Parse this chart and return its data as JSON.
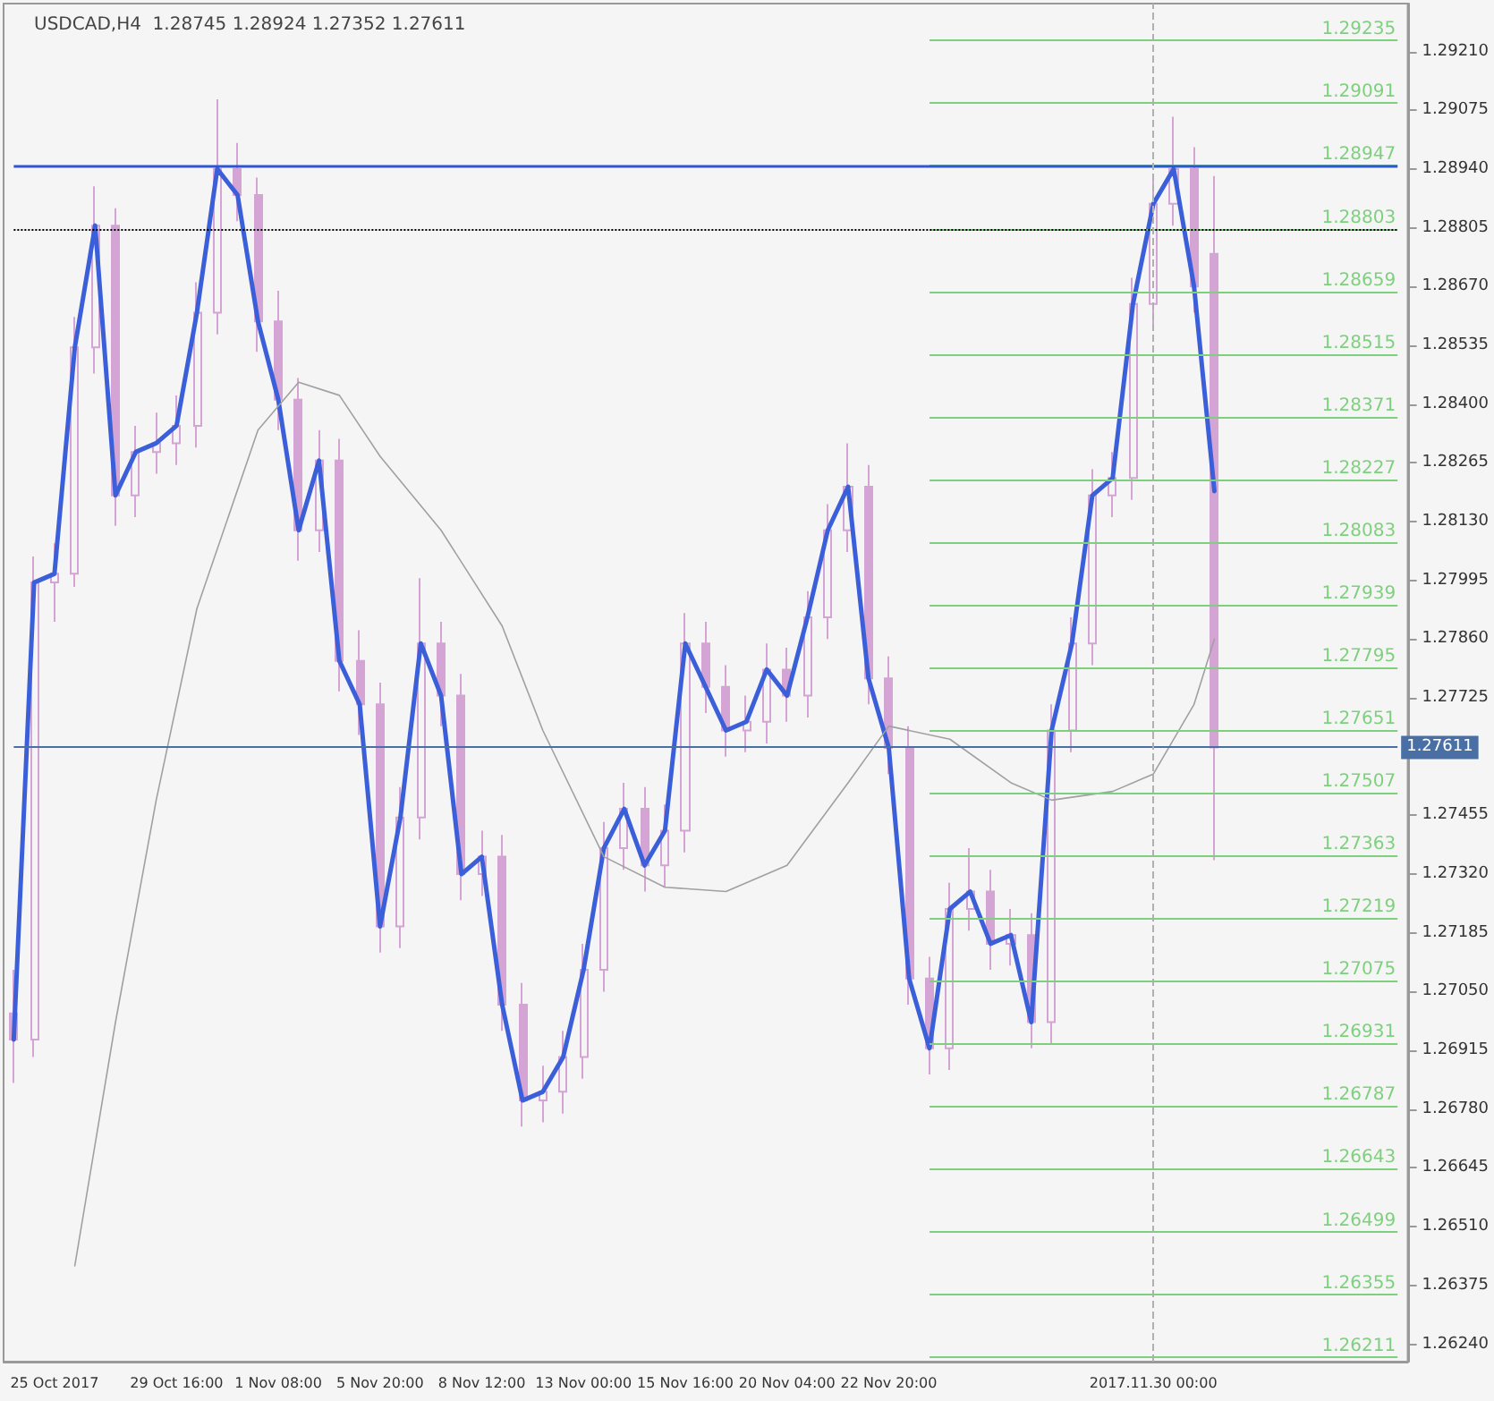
{
  "chart_data": {
    "type": "candlestick",
    "title": "USDCAD,H4  1.28745 1.28924 1.27352 1.27611",
    "color": "#d4a4d4",
    "marker": "none",
    "categories": [
      null,
      null,
      "25 Oct 2017",
      null,
      null,
      null,
      null,
      null,
      "29 Oct 16:00",
      null,
      null,
      null,
      null,
      "1 Nov 08:00",
      null,
      null,
      null,
      null,
      "5 Nov 20:00",
      null,
      null,
      null,
      null,
      "8 Nov 12:00",
      null,
      null,
      null,
      null,
      "13 Nov 00:00",
      null,
      null,
      null,
      null,
      "15 Nov 16:00",
      null,
      null,
      null,
      null,
      "20 Nov 04:00",
      null,
      null,
      null,
      null,
      "22 Nov 20:00",
      null,
      null,
      null,
      null,
      null,
      null,
      null,
      null,
      null,
      null,
      null,
      null,
      "2017.11.30 00:00",
      null,
      null,
      null,
      null,
      null,
      null,
      null,
      null,
      null,
      null,
      null,
      null
    ],
    "ohlc": [
      [
        1.27,
        1.271,
        1.2684,
        1.2694
      ],
      [
        1.2694,
        1.2805,
        1.269,
        1.2799
      ],
      [
        1.2799,
        1.2808,
        1.279,
        1.2801
      ],
      [
        1.2801,
        1.286,
        1.2798,
        1.2853
      ],
      [
        1.2853,
        1.289,
        1.2847,
        1.2881
      ],
      [
        1.2881,
        1.2885,
        1.2812,
        1.2819
      ],
      [
        1.2819,
        1.2835,
        1.2814,
        1.2829
      ],
      [
        1.2829,
        1.2838,
        1.2824,
        1.2831
      ],
      [
        1.2831,
        1.2842,
        1.2826,
        1.2835
      ],
      [
        1.2835,
        1.2868,
        1.283,
        1.2861
      ],
      [
        1.2861,
        1.291,
        1.2856,
        1.2894
      ],
      [
        1.2894,
        1.29,
        1.2882,
        1.2888
      ],
      [
        1.2888,
        1.2892,
        1.2852,
        1.2859
      ],
      [
        1.2859,
        1.2866,
        1.2834,
        1.2841
      ],
      [
        1.2841,
        1.2846,
        1.2804,
        1.2811
      ],
      [
        1.2811,
        1.2834,
        1.2806,
        1.2827
      ],
      [
        1.2827,
        1.2832,
        1.2774,
        1.2781
      ],
      [
        1.2781,
        1.2788,
        1.2764,
        1.2771
      ],
      [
        1.2771,
        1.2776,
        1.2714,
        1.272
      ],
      [
        1.272,
        1.2752,
        1.2715,
        1.2745
      ],
      [
        1.2745,
        1.28,
        1.274,
        1.2785
      ],
      [
        1.2785,
        1.279,
        1.2766,
        1.2773
      ],
      [
        1.2773,
        1.2778,
        1.2726,
        1.2732
      ],
      [
        1.2732,
        1.2742,
        1.2727,
        1.2736
      ],
      [
        1.2736,
        1.2741,
        1.2696,
        1.2702
      ],
      [
        1.2702,
        1.2707,
        1.2674,
        1.268
      ],
      [
        1.268,
        1.2688,
        1.2675,
        1.2682
      ],
      [
        1.2682,
        1.2696,
        1.2677,
        1.269
      ],
      [
        1.269,
        1.2716,
        1.2685,
        1.271
      ],
      [
        1.271,
        1.2744,
        1.2705,
        1.2738
      ],
      [
        1.2738,
        1.2753,
        1.2733,
        1.2747
      ],
      [
        1.2747,
        1.2752,
        1.2728,
        1.2734
      ],
      [
        1.2734,
        1.2748,
        1.2729,
        1.2742
      ],
      [
        1.2742,
        1.2792,
        1.2737,
        1.2785
      ],
      [
        1.2785,
        1.279,
        1.2769,
        1.2775
      ],
      [
        1.2775,
        1.278,
        1.2759,
        1.2765
      ],
      [
        1.2765,
        1.2773,
        1.276,
        1.2767
      ],
      [
        1.2767,
        1.2785,
        1.2762,
        1.2779
      ],
      [
        1.2779,
        1.2784,
        1.2767,
        1.2773
      ],
      [
        1.2773,
        1.2797,
        1.2768,
        1.2791
      ],
      [
        1.2791,
        1.2817,
        1.2786,
        1.2811
      ],
      [
        1.2811,
        1.2831,
        1.2806,
        1.2821
      ],
      [
        1.2821,
        1.2826,
        1.2771,
        1.2777
      ],
      [
        1.2777,
        1.2782,
        1.2755,
        1.2761
      ],
      [
        1.2761,
        1.2766,
        1.2702,
        1.2708
      ],
      [
        1.2708,
        1.2713,
        1.2686,
        1.2692
      ],
      [
        1.2692,
        1.273,
        1.2687,
        1.2724
      ],
      [
        1.2724,
        1.2738,
        1.2719,
        1.2728
      ],
      [
        1.2728,
        1.2733,
        1.271,
        1.2716
      ],
      [
        1.2716,
        1.2724,
        1.2711,
        1.2718
      ],
      [
        1.2718,
        1.2723,
        1.2692,
        1.2698
      ],
      [
        1.2698,
        1.2771,
        1.2693,
        1.2765
      ],
      [
        1.2765,
        1.2791,
        1.276,
        1.2785
      ],
      [
        1.2785,
        1.2825,
        1.278,
        1.2819
      ],
      [
        1.2819,
        1.2829,
        1.2814,
        1.2823
      ],
      [
        1.2823,
        1.2869,
        1.2818,
        1.2863
      ],
      [
        1.2863,
        1.2892,
        1.2858,
        1.2886
      ],
      [
        1.2886,
        1.2906,
        1.2881,
        1.2894
      ],
      [
        1.2894,
        1.2899,
        1.2861,
        1.2867
      ],
      [
        1.28745,
        1.28924,
        1.27352,
        1.27611
      ],
      null,
      null,
      null,
      null,
      null,
      null,
      null,
      null,
      null
    ],
    "series": [
      {
        "type": "line",
        "color": "#3b5fd9",
        "values": [
          1.2694,
          1.2799,
          1.2801,
          1.2853,
          1.2881,
          1.2819,
          1.2829,
          1.2831,
          1.2835,
          1.2861,
          1.2894,
          1.2888,
          1.2859,
          1.2841,
          1.2811,
          1.2827,
          1.2781,
          1.2771,
          1.272,
          1.2745,
          1.2785,
          1.2773,
          1.2732,
          1.2736,
          1.2702,
          1.268,
          1.2682,
          1.269,
          1.271,
          1.2738,
          1.2747,
          1.2734,
          1.2742,
          1.2785,
          1.2775,
          1.2765,
          1.2767,
          1.2779,
          1.2773,
          1.2791,
          1.2811,
          1.2821,
          1.2777,
          1.2761,
          1.2708,
          1.2692,
          1.2724,
          1.2728,
          1.2716,
          1.2718,
          1.2698,
          1.2765,
          1.2785,
          1.2819,
          1.2823,
          1.2863,
          1.2886,
          1.2894,
          1.2867,
          1.282,
          null,
          null,
          null,
          null,
          null,
          null,
          null,
          null,
          null
        ]
      },
      {
        "type": "line",
        "color": "#a0a0a0",
        "values": [
          null,
          null,
          null,
          1.2642,
          null,
          1.2698,
          null,
          1.2749,
          null,
          1.2793,
          null,
          null,
          1.2834,
          null,
          1.2845,
          null,
          1.2842,
          null,
          1.2828,
          null,
          null,
          1.2811,
          null,
          null,
          1.2789,
          null,
          1.2765,
          null,
          null,
          1.2736,
          null,
          null,
          1.2729,
          null,
          null,
          1.2728,
          null,
          null,
          1.2734,
          null,
          null,
          1.2753,
          null,
          1.2766,
          null,
          null,
          1.2763,
          null,
          null,
          1.2753,
          null,
          1.2749,
          null,
          null,
          1.2751,
          null,
          1.2755,
          null,
          1.2771,
          1.2786,
          null,
          null,
          null,
          null,
          null,
          null,
          null,
          null,
          null
        ]
      }
    ],
    "ylim": [
      1.262,
      1.2932
    ],
    "yticks": [
      {
        "value": 1.2624,
        "label": "1.26240"
      },
      1.26375,
      {
        "value": 1.2651,
        "label": "1.26510"
      },
      1.26645,
      {
        "value": 1.2678,
        "label": "1.26780"
      },
      1.26915,
      {
        "value": 1.2705,
        "label": "1.27050"
      },
      1.27185,
      {
        "value": 1.2732,
        "label": "1.27320"
      },
      1.27455,
      {
        "value": 1.2759,
        "label": null
      },
      1.27725,
      {
        "value": 1.2786,
        "label": "1.27860"
      },
      1.27995,
      {
        "value": 1.2813,
        "label": "1.28130"
      },
      1.28265,
      {
        "value": 1.284,
        "label": "1.28400"
      },
      1.28535,
      {
        "value": 1.2867,
        "label": "1.28670"
      },
      1.28805,
      {
        "value": 1.2894,
        "label": "1.28940"
      },
      1.29075,
      {
        "value": 1.2921,
        "label": "1.29210"
      }
    ],
    "ref_lines": [
      {
        "axis": "y",
        "value": 1.29235,
        "label": "1.29235",
        "color": "#7ed07e"
      },
      {
        "axis": "y",
        "value": 1.29091,
        "label": "1.29091",
        "color": "#7ed07e"
      },
      {
        "axis": "y",
        "value": 1.28947,
        "label": "1.28947",
        "color": "#7ed07e"
      },
      {
        "axis": "y",
        "value": 1.28803,
        "label": "1.28803",
        "color": "#7ed07e"
      },
      {
        "axis": "y",
        "value": 1.28659,
        "label": "1.28659",
        "color": "#7ed07e"
      },
      {
        "axis": "y",
        "value": 1.28515,
        "label": "1.28515",
        "color": "#7ed07e"
      },
      {
        "axis": "y",
        "value": 1.28371,
        "label": "1.28371",
        "color": "#7ed07e"
      },
      {
        "axis": "y",
        "value": 1.28227,
        "label": "1.28227",
        "color": "#7ed07e"
      },
      {
        "axis": "y",
        "value": 1.28083,
        "label": "1.28083",
        "color": "#7ed07e"
      },
      {
        "axis": "y",
        "value": 1.27939,
        "label": "1.27939",
        "color": "#7ed07e"
      },
      {
        "axis": "y",
        "value": 1.27795,
        "label": "1.27795",
        "color": "#7ed07e"
      },
      {
        "axis": "y",
        "value": 1.27651,
        "label": "1.27651",
        "color": "#7ed07e"
      },
      {
        "axis": "y",
        "value": 1.27507,
        "label": "1.27507",
        "color": "#7ed07e"
      },
      {
        "axis": "y",
        "value": 1.27363,
        "label": "1.27363",
        "color": "#7ed07e"
      },
      {
        "axis": "y",
        "value": 1.27219,
        "label": "1.27219",
        "color": "#7ed07e"
      },
      {
        "axis": "y",
        "value": 1.27075,
        "label": "1.27075",
        "color": "#7ed07e"
      },
      {
        "axis": "y",
        "value": 1.26931,
        "label": "1.26931",
        "color": "#7ed07e"
      },
      {
        "axis": "y",
        "value": 1.26787,
        "label": "1.26787",
        "color": "#7ed07e"
      },
      {
        "axis": "y",
        "value": 1.26643,
        "label": "1.26643",
        "color": "#7ed07e"
      },
      {
        "axis": "y",
        "value": 1.26499,
        "label": "1.26499",
        "color": "#7ed07e"
      },
      {
        "axis": "y",
        "value": 1.26355,
        "label": "1.26355",
        "color": "#7ed07e"
      },
      {
        "axis": "y",
        "value": 1.26211,
        "label": "1.26211",
        "color": "#7ed07e"
      },
      {
        "axis": "y",
        "value": 1.28947,
        "color": "#2f55d4"
      },
      {
        "axis": "y",
        "value": 1.28803,
        "color": "#000000",
        "line_style": "dotted"
      },
      {
        "axis": "y",
        "value": 1.27611,
        "label": "1.27611",
        "color": "#4a6fa5"
      },
      {
        "axis": "x",
        "value": "2017.11.30 00:00",
        "color": "#b0b0b0",
        "line_style": "dashed"
      }
    ]
  }
}
